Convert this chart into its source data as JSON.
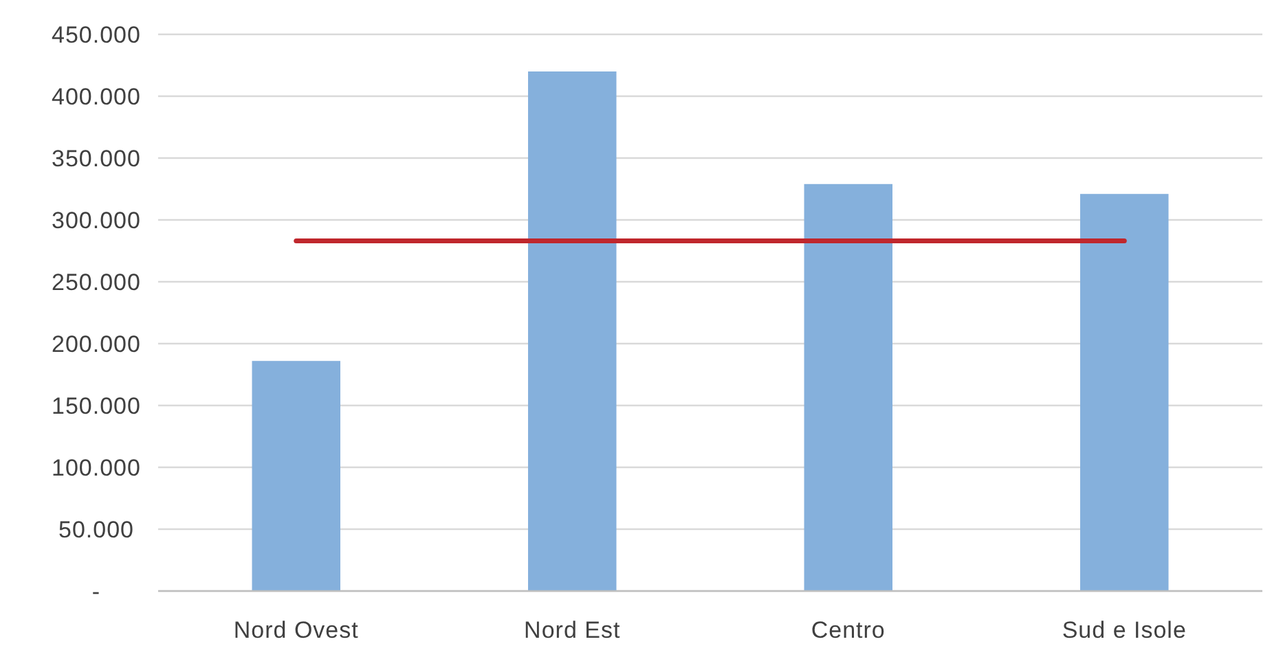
{
  "chart_data": {
    "type": "bar",
    "categories": [
      "Nord Ovest",
      "Nord Est",
      "Centro",
      "Sud e Isole"
    ],
    "series": [
      {
        "color": "#85b0dc",
        "values": [
          186000,
          420000,
          329000,
          321000
        ]
      },
      {
        "type": "line",
        "color": "#c0272d",
        "values": [
          283000,
          283000,
          283000,
          283000
        ]
      }
    ],
    "ylim": [
      0,
      450000
    ],
    "yticks": [
      {
        "value": 0,
        "label": "-"
      },
      {
        "value": 50000,
        "label": "50.000"
      },
      {
        "value": 100000,
        "label": "100.000"
      },
      {
        "value": 150000,
        "label": "150.000"
      },
      {
        "value": 200000,
        "label": "200.000"
      },
      {
        "value": 250000,
        "label": "250.000"
      },
      {
        "value": 300000,
        "label": "300.000"
      },
      {
        "value": 350000,
        "label": "350.000"
      },
      {
        "value": 400000,
        "label": "400.000"
      },
      {
        "value": 450000,
        "label": "450.000"
      }
    ],
    "grid": "y",
    "marker": "none",
    "line_style": "solid"
  }
}
